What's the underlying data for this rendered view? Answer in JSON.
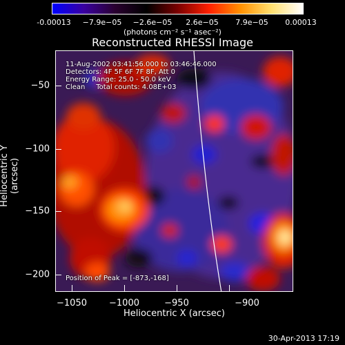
{
  "colorbar": {
    "ticks": [
      "-0.00013",
      "−7.9e−05",
      "−2.6e−05",
      "2.6e−05",
      "7.9e−05",
      "0.00013"
    ],
    "units": "(photons cm⁻² s⁻¹ asec⁻²)",
    "colors": [
      "#0000ff",
      "#3a00a0",
      "#2a0030",
      "#000000",
      "#7a0000",
      "#ff2000",
      "#ff9000",
      "#ffe070",
      "#ffffff"
    ]
  },
  "title": "Reconstructed RHESSI Image",
  "annotations": {
    "line1": "11-Aug-2002 03:41:56.000 to 03:46:46.000",
    "line2": "Detectors: 4F 5F 6F 7F 8F, Att 0",
    "line3": "Energy Range: 25.0 - 50.0 keV",
    "line4": "Clean     Total counts: 4.08E+03",
    "peak": "Position of Peak = [-873,-168]"
  },
  "axes": {
    "xlabel": "Heliocentric X (arcsec)",
    "ylabel": "Heliocentric Y (arcsec)",
    "xticks": [
      "−1050",
      "−1000",
      "−950",
      "−900"
    ],
    "yticks": [
      "−50",
      "−100",
      "−150",
      "−200"
    ]
  },
  "timestamp": "30-Apr-2013 17:19"
}
